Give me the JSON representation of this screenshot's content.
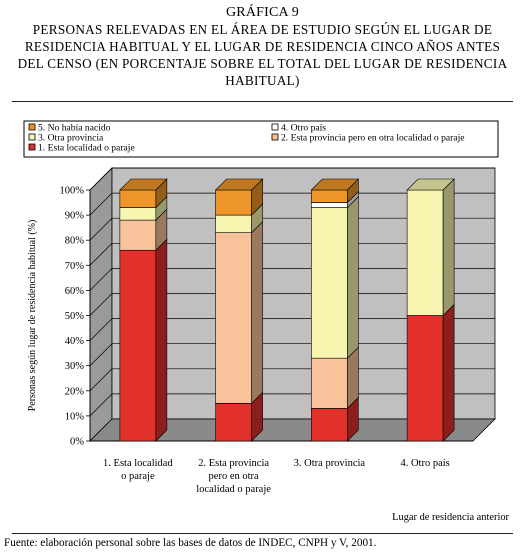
{
  "header": {
    "chart_number": "GRÁFICA 9",
    "title": "PERSONAS RELEVADAS EN EL ÁREA DE ESTUDIO SEGÚN EL LUGAR DE RESIDENCIA HABITUAL  Y EL  LUGAR DE RESIDENCIA CINCO AÑOS ANTES DEL CENSO (EN PORCENTAJE SOBRE EL TOTAL DEL LUGAR DE RESIDENCIA HABITUAL)"
  },
  "footer": {
    "source": "Fuente: elaboración personal sobre las bases de datos de INDEC, CNPH y V, 2001."
  },
  "chart_data": {
    "type": "bar",
    "stacked": true,
    "three_d": true,
    "categories": [
      [
        "1. Esta localidad",
        "o paraje"
      ],
      [
        "2. Esta provincia",
        "pero en otra",
        "localidad o paraje"
      ],
      [
        "3. Otra provincia"
      ],
      [
        "4. Otro país"
      ]
    ],
    "series": [
      {
        "name": "1. Esta localidad o paraje",
        "color": "#e2302b",
        "values": [
          76,
          15,
          13,
          50
        ]
      },
      {
        "name": "2. Esta provincia pero en otra localidad o paraje",
        "color": "#f8c39a",
        "values": [
          12,
          68,
          20,
          0
        ]
      },
      {
        "name": "3. Otra provincia",
        "color": "#f7f5b0",
        "values": [
          5,
          7,
          60,
          50
        ]
      },
      {
        "name": "4. Otro país",
        "color": "#ffffff",
        "values": [
          0,
          0,
          2,
          0
        ]
      },
      {
        "name": "5. No había nacido",
        "color": "#ef962a",
        "values": [
          7,
          10,
          5,
          0
        ]
      }
    ],
    "legend_order": [
      4,
      3,
      2,
      1,
      0
    ],
    "ylim": [
      0,
      100
    ],
    "yticks": [
      "0%",
      "10%",
      "20%",
      "30%",
      "40%",
      "50%",
      "60%",
      "70%",
      "80%",
      "90%",
      "100%"
    ],
    "ylabel": "Personas según lugar de residencia habitual (%)",
    "xlabel": "Lugar de residencia anterior",
    "legend_position": "top",
    "grid": true,
    "wall_color": "#c0c0c0"
  }
}
